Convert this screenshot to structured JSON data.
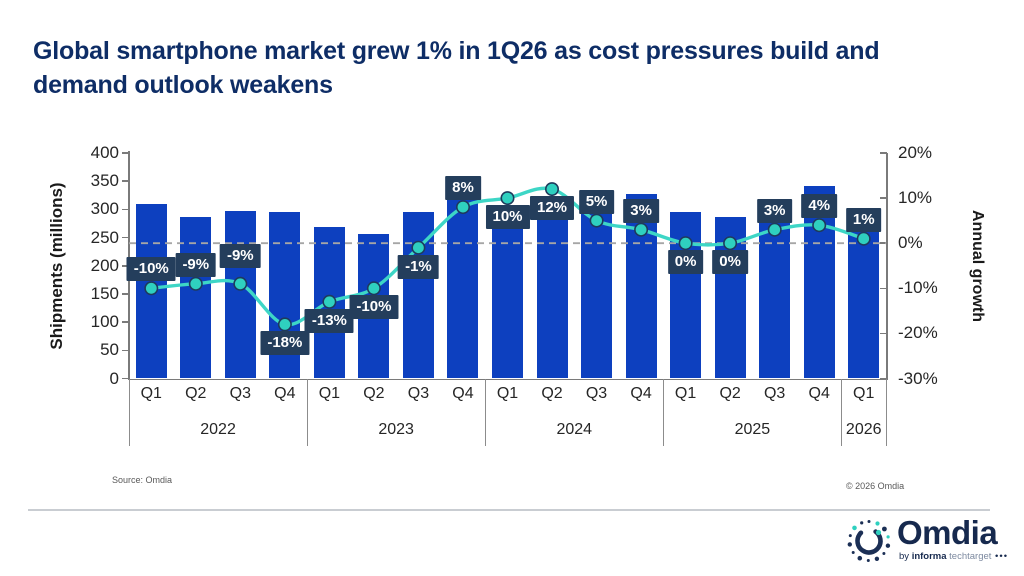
{
  "title": "Global smartphone market grew 1% in 1Q26 as cost pressures build and demand outlook weakens",
  "chart_data": {
    "type": "bar+line combo",
    "years": [
      {
        "label": "2022",
        "quarters": [
          "Q1",
          "Q2",
          "Q3",
          "Q4"
        ]
      },
      {
        "label": "2023",
        "quarters": [
          "Q1",
          "Q2",
          "Q3",
          "Q4"
        ]
      },
      {
        "label": "2024",
        "quarters": [
          "Q1",
          "Q2",
          "Q3",
          "Q4"
        ]
      },
      {
        "label": "2025",
        "quarters": [
          "Q1",
          "Q2",
          "Q3",
          "Q4"
        ]
      },
      {
        "label": "2026",
        "quarters": [
          "Q1"
        ]
      }
    ],
    "bar_series": {
      "name": "Shipments (millions)",
      "color": "#0d40bf",
      "values": [
        310,
        286,
        297,
        296,
        269,
        257,
        296,
        318,
        296,
        287,
        310,
        328,
        296,
        287,
        319,
        341,
        299
      ]
    },
    "line_series": {
      "name": "Annual growth",
      "color": "#3dd6c6",
      "marker_fill": "#2fd0bf",
      "marker_stroke": "#1e3a5c",
      "values": [
        -10,
        -9,
        -9,
        -18,
        -13,
        -10,
        -1,
        8,
        10,
        12,
        5,
        3,
        0,
        0,
        3,
        4,
        1
      ],
      "labels": [
        "-10%",
        "-9%",
        "-9%",
        "-18%",
        "-13%",
        "-10%",
        "-1%",
        "8%",
        "10%",
        "12%",
        "5%",
        "3%",
        "0%",
        "0%",
        "3%",
        "4%",
        "1%"
      ],
      "label_side": [
        "above",
        "above",
        "above-high",
        "below",
        "below",
        "below",
        "below",
        "above",
        "below",
        "below",
        "above",
        "above",
        "below",
        "below",
        "above",
        "above",
        "above"
      ]
    },
    "left_axis": {
      "title": "Shipments (millions)",
      "min": 0,
      "max": 400,
      "ticks": [
        "400",
        "350",
        "300",
        "250",
        "200",
        "150",
        "100",
        "50",
        "0"
      ]
    },
    "right_axis": {
      "title": "Annual growth",
      "min": -30,
      "max": 20,
      "ticks": [
        "20%",
        "10%",
        "0%",
        "-10%",
        "-20%",
        "-30%"
      ]
    },
    "zero_line": {
      "style": "dashed",
      "color": "#a6a6a6",
      "at_percent": 0
    },
    "label_box_color": "#243e5c",
    "grid": "off",
    "legend": "none"
  },
  "footer": {
    "source": "Source: Omdia",
    "copyright": "© 2026 Omdia"
  },
  "logo": {
    "name": "Omdia",
    "by": "by ",
    "informa": "informa",
    "techtarget": " techtarget",
    "dots": " •••",
    "navy": "#16294e",
    "teal": "#2ed0bf"
  }
}
